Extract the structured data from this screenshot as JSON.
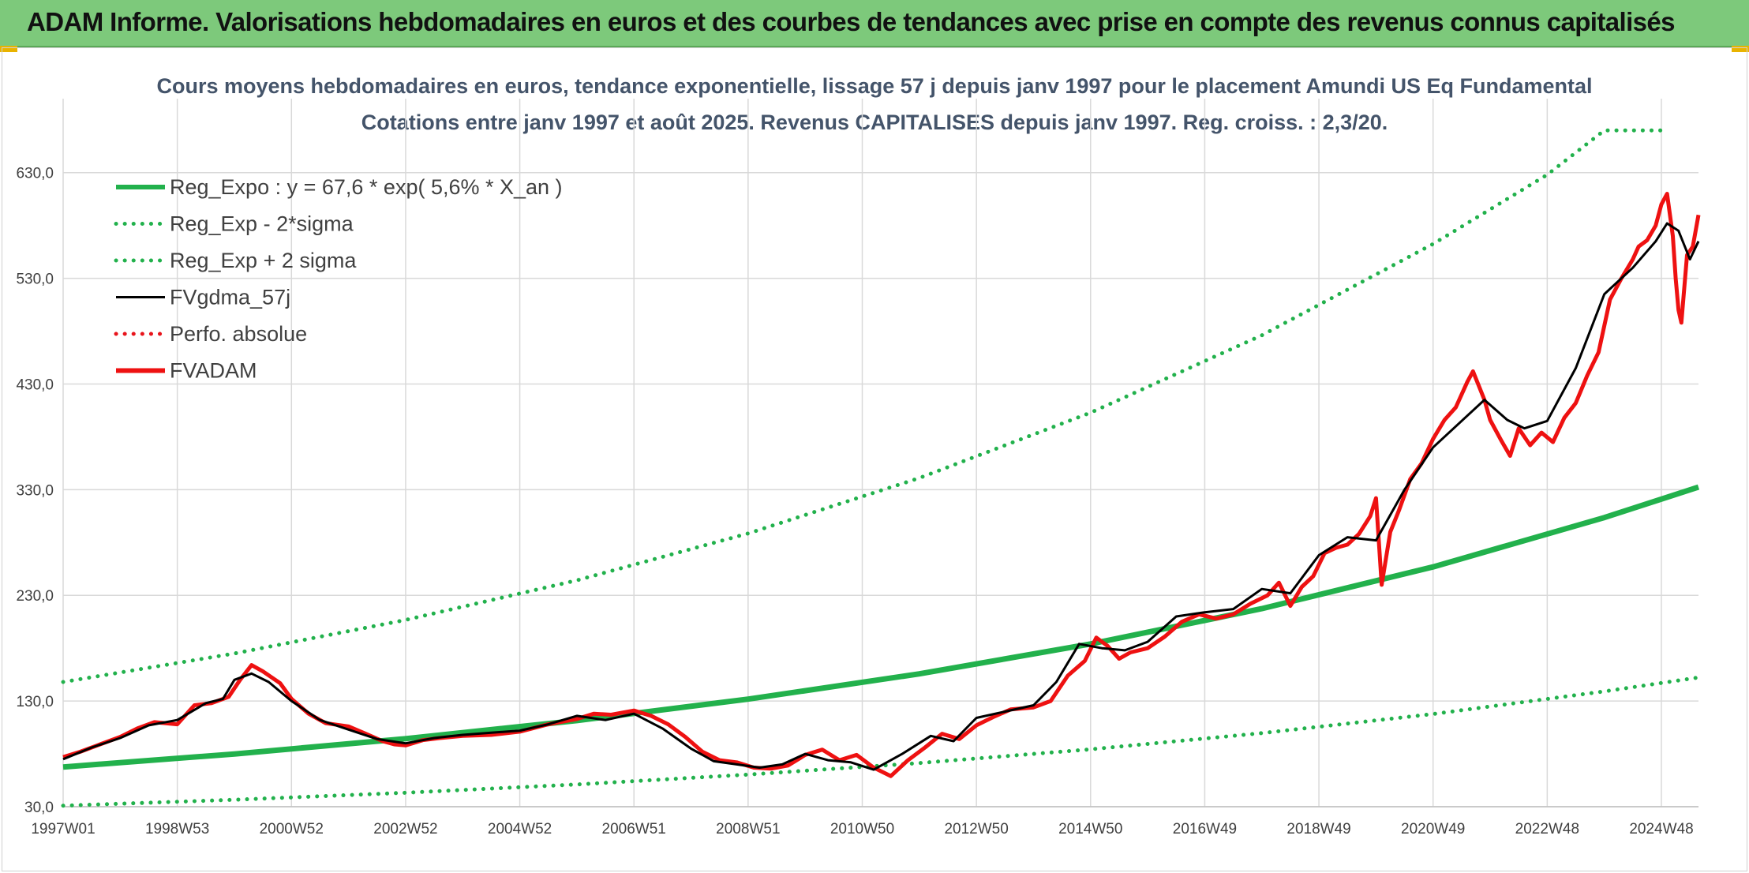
{
  "header": {
    "title": "ADAM Informe. Valorisations hebdomadaires en euros et des courbes de tendances avec prise en compte des revenus connus capitalisés"
  },
  "colors": {
    "banner": "#7dc97b",
    "trend": "#22b14c",
    "band": "#22b14c",
    "smoothed": "#000000",
    "perf": "#e8141b",
    "price": "#ee1111"
  },
  "chart_data": {
    "type": "line",
    "title": "Cours moyens hebdomadaires en euros, tendance exponentielle, lissage 57 j depuis janv 1997 pour le placement Amundi US Eq Fundamental",
    "subtitle": "Cotations entre janv 1997 et août 2025. Revenus CAPITALISES depuis janv 1997. Reg. croiss. : 2,3/20.",
    "xlabel": "",
    "ylabel": "",
    "ylim": [
      30,
      700
    ],
    "xlim": [
      1997.0,
      2025.65
    ],
    "grid": true,
    "legend_position": "top-left",
    "y_ticks": [
      "30,0",
      "130,0",
      "230,0",
      "330,0",
      "430,0",
      "530,0",
      "630,0"
    ],
    "y_tick_values": [
      30,
      130,
      230,
      330,
      430,
      530,
      630
    ],
    "x_ticks": [
      "1997W01",
      "1998W53",
      "2000W52",
      "2002W52",
      "2004W52",
      "2006W51",
      "2008W51",
      "2010W50",
      "2012W50",
      "2014W50",
      "2016W49",
      "2018W49",
      "2020W49",
      "2022W48",
      "2024W48"
    ],
    "x_tick_values": [
      1997.0,
      1999.0,
      2001.0,
      2003.0,
      2005.0,
      2007.0,
      2009.0,
      2011.0,
      2013.0,
      2015.0,
      2017.0,
      2019.0,
      2021.0,
      2023.0,
      2025.0
    ],
    "series": [
      {
        "name": "Reg_Expo : y = 67,6 * exp( 5,6% *  X_an )",
        "style": "solid-thick",
        "color": "#22b14c",
        "x": [
          1997.0,
          2000.0,
          2003.0,
          2006.0,
          2009.0,
          2012.0,
          2015.0,
          2018.0,
          2021.0,
          2024.0,
          2025.65
        ],
        "values": [
          67.6,
          79.9,
          94.4,
          111.5,
          131.8,
          155.7,
          184.0,
          217.4,
          256.9,
          303.6,
          332.4
        ]
      },
      {
        "name": "Reg_Exp - 2*sigma",
        "style": "dotted",
        "color": "#22b14c",
        "x": [
          1997.0,
          2000.0,
          2003.0,
          2006.0,
          2009.0,
          2012.0,
          2015.0,
          2018.0,
          2021.0,
          2024.0,
          2025.65
        ],
        "values": [
          31.0,
          36.6,
          43.2,
          51.1,
          60.4,
          71.3,
          84.3,
          99.6,
          117.7,
          139.1,
          152.3
        ]
      },
      {
        "name": "Reg_Exp + 2 sigma",
        "style": "dotted",
        "color": "#22b14c",
        "x": [
          1997.0,
          2000.0,
          2003.0,
          2006.0,
          2009.0,
          2012.0,
          2015.0,
          2018.0,
          2021.0,
          2023.0,
          2024.0,
          2025.0
        ],
        "values": [
          148.0,
          175.0,
          206.7,
          244.2,
          288.6,
          341.0,
          402.9,
          476.1,
          562.5,
          628.0,
          670.0,
          670.0
        ]
      },
      {
        "name": "FVgdma_57j",
        "style": "solid",
        "color": "#000000",
        "x": [
          1997.0,
          1997.5,
          1998.0,
          1998.5,
          1999.0,
          1999.5,
          1999.8,
          2000.0,
          2000.3,
          2000.6,
          2001.0,
          2001.5,
          2002.0,
          2002.5,
          2003.0,
          2003.5,
          2004.0,
          2004.5,
          2005.0,
          2005.5,
          2006.0,
          2006.5,
          2007.0,
          2007.5,
          2008.0,
          2008.4,
          2008.8,
          2009.2,
          2009.6,
          2010.0,
          2010.4,
          2010.8,
          2011.2,
          2011.7,
          2012.2,
          2012.6,
          2013.0,
          2013.5,
          2014.0,
          2014.4,
          2014.8,
          2015.2,
          2015.6,
          2016.0,
          2016.5,
          2017.0,
          2017.5,
          2018.0,
          2018.5,
          2019.0,
          2019.5,
          2020.0,
          2020.5,
          2021.0,
          2021.5,
          2021.9,
          2022.3,
          2022.6,
          2023.0,
          2023.5,
          2024.0,
          2024.5,
          2024.9,
          2025.1,
          2025.3,
          2025.5,
          2025.65
        ],
        "values": [
          75,
          86,
          95,
          107,
          112,
          128,
          132,
          150,
          156,
          148,
          130,
          112,
          103,
          94,
          90,
          95,
          98,
          100,
          102,
          108,
          116,
          112,
          118,
          104,
          85,
          73,
          70,
          67,
          70,
          80,
          74,
          72,
          65,
          80,
          97,
          92,
          114,
          120,
          126,
          148,
          184,
          180,
          178,
          186,
          210,
          214,
          217,
          236,
          232,
          268,
          285,
          282,
          330,
          370,
          395,
          415,
          396,
          388,
          395,
          445,
          515,
          540,
          565,
          582,
          575,
          548,
          565
        ]
      },
      {
        "name": "Perfo. absolue",
        "style": "dotted",
        "color": "#e8141b",
        "x": [],
        "values": []
      },
      {
        "name": "FVADAM",
        "style": "solid-thick",
        "color": "#ee1111",
        "x": [
          1997.0,
          1997.3,
          1997.6,
          1998.0,
          1998.3,
          1998.6,
          1999.0,
          1999.3,
          1999.6,
          1999.9,
          2000.1,
          2000.3,
          2000.5,
          2000.8,
          2001.0,
          2001.3,
          2001.6,
          2002.0,
          2002.3,
          2002.6,
          2002.8,
          2003.0,
          2003.3,
          2003.6,
          2004.0,
          2004.5,
          2005.0,
          2005.5,
          2006.0,
          2006.3,
          2006.6,
          2007.0,
          2007.3,
          2007.6,
          2007.9,
          2008.2,
          2008.5,
          2008.8,
          2009.1,
          2009.4,
          2009.7,
          2010.0,
          2010.3,
          2010.6,
          2010.9,
          2011.2,
          2011.5,
          2011.8,
          2012.1,
          2012.4,
          2012.7,
          2013.0,
          2013.3,
          2013.6,
          2014.0,
          2014.3,
          2014.6,
          2014.9,
          2015.1,
          2015.3,
          2015.5,
          2015.7,
          2016.0,
          2016.3,
          2016.6,
          2016.9,
          2017.2,
          2017.5,
          2017.8,
          2018.1,
          2018.3,
          2018.5,
          2018.7,
          2018.9,
          2019.1,
          2019.3,
          2019.5,
          2019.7,
          2019.9,
          2020.0,
          2020.1,
          2020.25,
          2020.4,
          2020.6,
          2020.8,
          2021.0,
          2021.2,
          2021.4,
          2021.6,
          2021.7,
          2021.9,
          2022.0,
          2022.2,
          2022.35,
          2022.5,
          2022.7,
          2022.9,
          2023.1,
          2023.3,
          2023.5,
          2023.7,
          2023.9,
          2024.1,
          2024.3,
          2024.5,
          2024.6,
          2024.75,
          2024.9,
          2025.0,
          2025.1,
          2025.2,
          2025.25,
          2025.3,
          2025.35,
          2025.45,
          2025.55,
          2025.65
        ],
        "values": [
          77,
          82,
          88,
          96,
          104,
          110,
          108,
          126,
          128,
          134,
          150,
          164,
          158,
          147,
          132,
          118,
          109,
          106,
          99,
          92,
          89,
          88,
          93,
          95,
          97,
          98,
          101,
          108,
          113,
          118,
          117,
          121,
          116,
          108,
          96,
          82,
          74,
          72,
          67,
          66,
          69,
          79,
          84,
          74,
          79,
          67,
          59,
          74,
          86,
          99,
          94,
          107,
          115,
          122,
          124,
          130,
          154,
          168,
          190,
          182,
          170,
          176,
          180,
          191,
          205,
          212,
          208,
          212,
          222,
          230,
          242,
          220,
          238,
          248,
          270,
          275,
          278,
          288,
          305,
          322,
          240,
          290,
          310,
          340,
          355,
          378,
          396,
          408,
          432,
          442,
          415,
          396,
          376,
          362,
          388,
          372,
          384,
          375,
          398,
          412,
          438,
          460,
          510,
          530,
          548,
          560,
          566,
          580,
          600,
          610,
          570,
          530,
          500,
          488,
          552,
          560,
          590
        ]
      }
    ]
  }
}
